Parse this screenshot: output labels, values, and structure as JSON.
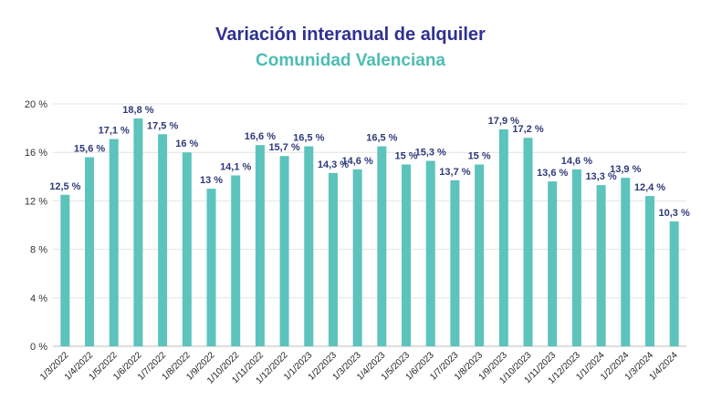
{
  "colors": {
    "title": "#2e3192",
    "subtitle": "#4dbdb3",
    "bar": "#5cc3bd",
    "data_label": "#2e3a7a",
    "grid": "#e4e4e4",
    "axis": "#bdbdbd"
  },
  "chart_data": {
    "type": "bar",
    "title": "Variación interanual de alquiler",
    "subtitle": "Comunidad Valenciana",
    "xlabel": "",
    "ylabel": "",
    "ylim": [
      0,
      20
    ],
    "yticks": [
      0,
      4,
      8,
      12,
      16,
      20
    ],
    "ytick_labels": [
      "0 %",
      "4 %",
      "8 %",
      "12 %",
      "16 %",
      "20 %"
    ],
    "grid": true,
    "categories": [
      "1/3/2022",
      "1/4/2022",
      "1/5/2022",
      "1/6/2022",
      "1/7/2022",
      "1/8/2022",
      "1/9/2022",
      "1/10/2022",
      "1/11/2022",
      "1/12/2022",
      "1/1/2023",
      "1/2/2023",
      "1/3/2023",
      "1/4/2023",
      "1/5/2023",
      "1/6/2023",
      "1/7/2023",
      "1/8/2023",
      "1/9/2023",
      "1/10/2023",
      "1/11/2023",
      "1/12/2023",
      "1/1/2024",
      "1/2/2024",
      "1/3/2024",
      "1/4/2024"
    ],
    "values": [
      12.5,
      15.6,
      17.1,
      18.8,
      17.5,
      16,
      13,
      14.1,
      16.6,
      15.7,
      16.5,
      14.3,
      14.6,
      16.5,
      15,
      15.3,
      13.7,
      15,
      17.9,
      17.2,
      13.6,
      14.6,
      13.3,
      13.9,
      12.4,
      10.3
    ],
    "value_labels": [
      "12,5 %",
      "15,6 %",
      "17,1 %",
      "18,8 %",
      "17,5 %",
      "16 %",
      "13 %",
      "14,1 %",
      "16,6 %",
      "15,7 %",
      "16,5 %",
      "14,3 %",
      "14,6 %",
      "16,5 %",
      "15 %",
      "15,3 %",
      "13,7 %",
      "15 %",
      "17,9 %",
      "17,2 %",
      "13,6 %",
      "14,6 %",
      "13,3 %",
      "13,9 %",
      "12,4 %",
      "10,3 %"
    ]
  }
}
